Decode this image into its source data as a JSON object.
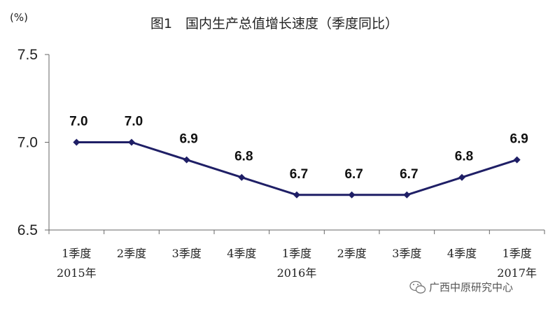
{
  "chart_data": {
    "type": "line",
    "title": "图1　国内生产总值增长速度（季度同比）",
    "unit_label": "(%)",
    "categories": [
      "1季度",
      "2季度",
      "3季度",
      "4季度",
      "1季度",
      "2季度",
      "3季度",
      "4季度",
      "1季度"
    ],
    "year_labels": [
      {
        "index": 0,
        "text": "2015年"
      },
      {
        "index": 4,
        "text": "2016年"
      },
      {
        "index": 8,
        "text": "2017年"
      }
    ],
    "series": [
      {
        "values": [
          7.0,
          7.0,
          6.9,
          6.8,
          6.7,
          6.7,
          6.7,
          6.8,
          6.9
        ]
      }
    ],
    "data_labels": [
      "7.0",
      "7.0",
      "6.9",
      "6.8",
      "6.7",
      "6.7",
      "6.7",
      "6.8",
      "6.9"
    ],
    "ylim": [
      6.5,
      7.5
    ],
    "yticks": [
      "6.5",
      "7.0",
      "7.5"
    ],
    "grid": false,
    "line_color": "#1f1f66"
  },
  "watermark": "广西中原研究中心"
}
